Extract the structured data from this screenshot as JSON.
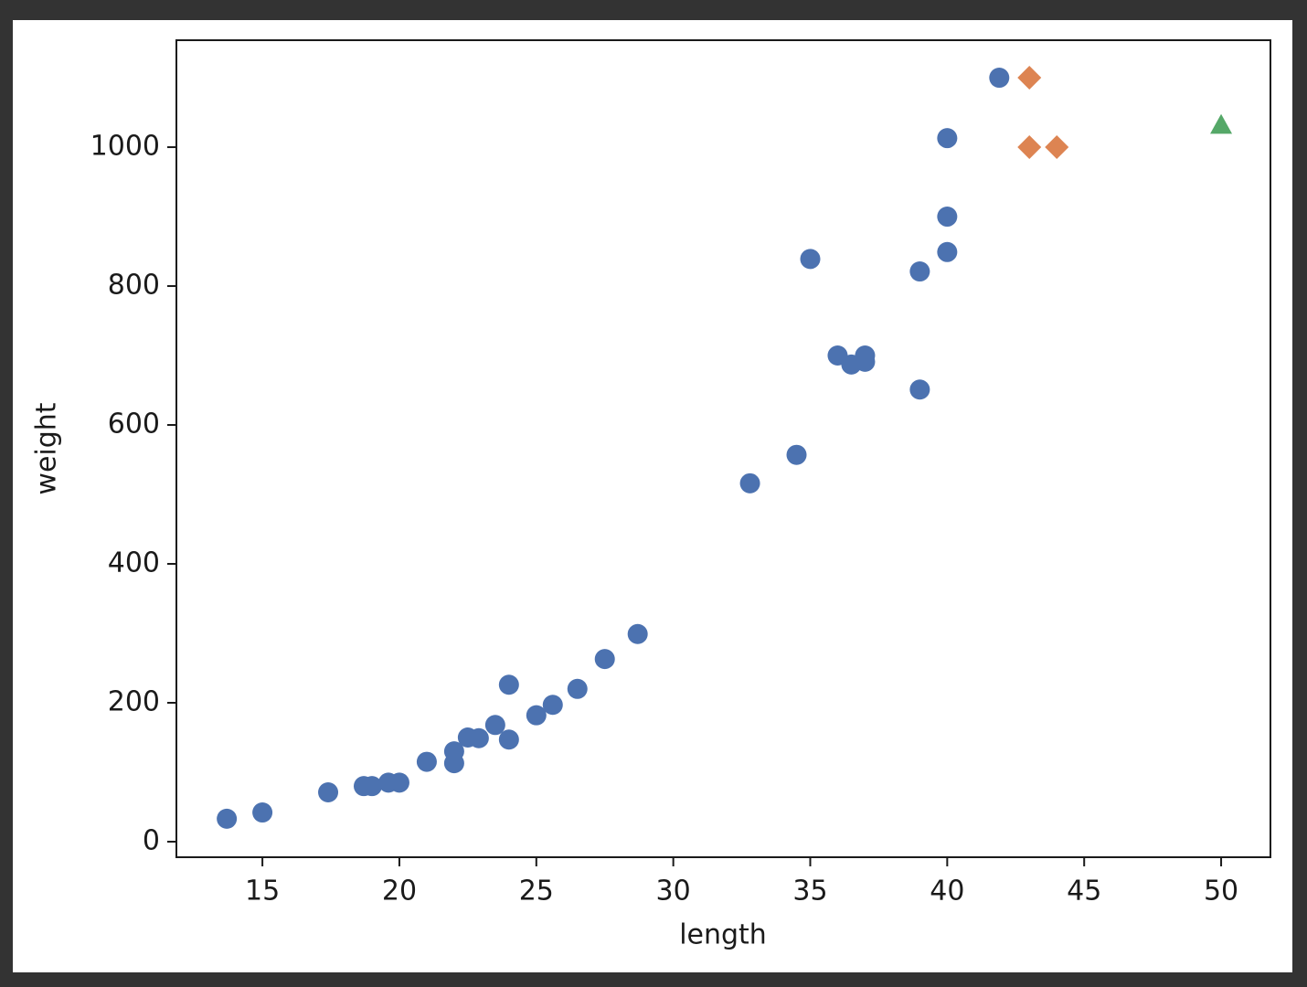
{
  "chart_data": {
    "type": "scatter",
    "x_label": "length",
    "y_label": "weight",
    "xlim": [
      11.86,
      51.8
    ],
    "ylim": [
      -22.4,
      1154
    ],
    "xticks": [
      15,
      20,
      25,
      30,
      35,
      40,
      45,
      50
    ],
    "yticks": [
      0,
      200,
      400,
      600,
      800,
      1000
    ],
    "grid": false,
    "series": [
      {
        "color": "#4c72b0",
        "marker": "o",
        "x": [
          13.7,
          15,
          17.4,
          18.7,
          19,
          19.6,
          20,
          21,
          22,
          22,
          22.5,
          22.9,
          23.5,
          24,
          24,
          25,
          25.6,
          26.5,
          27.5,
          28.7,
          32.8,
          34.5,
          35,
          36,
          36.5,
          37,
          37,
          39,
          39,
          40,
          40,
          40,
          41.9
        ],
        "y": [
          33,
          42,
          71,
          80,
          80,
          85,
          85,
          115,
          130,
          113,
          150,
          149,
          168,
          226,
          147,
          182,
          197,
          220,
          263,
          299,
          516,
          557,
          839,
          700,
          687,
          700,
          691,
          651,
          821,
          1013,
          900,
          849,
          1100
        ]
      },
      {
        "color": "#dd8452",
        "marker": "D",
        "x": [
          43,
          43,
          44
        ],
        "y": [
          1100,
          1000,
          1000
        ]
      },
      {
        "color": "#55a868",
        "marker": "^",
        "x": [
          50
        ],
        "y": [
          1032
        ]
      }
    ]
  }
}
